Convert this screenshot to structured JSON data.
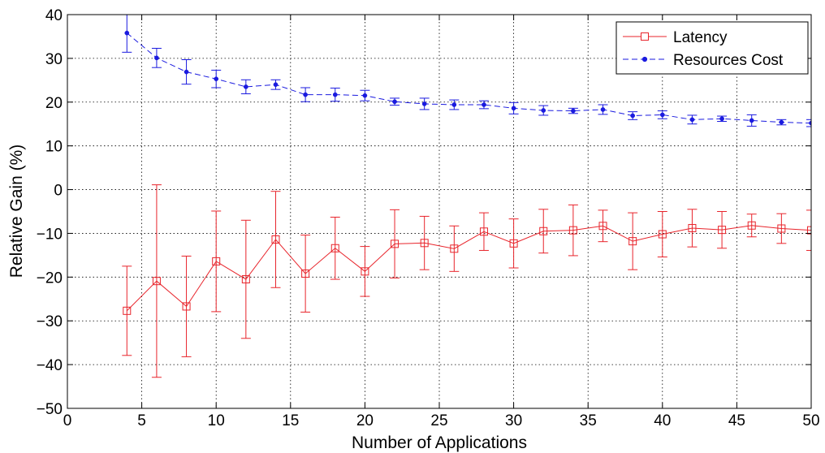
{
  "chart_data": {
    "type": "line",
    "xlabel": "Number of Applications",
    "ylabel": "Relative Gain (%)",
    "xlim": [
      0,
      50
    ],
    "ylim": [
      -50,
      40
    ],
    "xticks": [
      0,
      5,
      10,
      15,
      20,
      25,
      30,
      35,
      40,
      45,
      50
    ],
    "yticks": [
      40,
      30,
      20,
      10,
      0,
      -10,
      -20,
      -30,
      -40,
      -50
    ],
    "xtick_labels": [
      "0",
      "5",
      "10",
      "15",
      "20",
      "25",
      "30",
      "35",
      "40",
      "45",
      "50"
    ],
    "ytick_labels": [
      "40",
      "30",
      "20",
      "10",
      "0",
      "−10",
      "−20",
      "−30",
      "−40",
      "−50"
    ],
    "grid": true,
    "legend_position": "top-right",
    "x": [
      4,
      6,
      8,
      10,
      12,
      14,
      16,
      18,
      20,
      22,
      24,
      26,
      28,
      30,
      32,
      34,
      36,
      38,
      40,
      42,
      44,
      46,
      48,
      50
    ],
    "series": [
      {
        "name": "Latency",
        "color": "#e8242b",
        "line_style": "solid",
        "marker": "square",
        "values": [
          -27.7,
          -20.9,
          -26.7,
          -16.4,
          -20.5,
          -11.4,
          -19.2,
          -13.4,
          -18.7,
          -12.4,
          -12.2,
          -13.5,
          -9.6,
          -12.3,
          -9.5,
          -9.3,
          -8.3,
          -11.8,
          -10.2,
          -8.8,
          -9.2,
          -8.2,
          -8.9,
          -9.3
        ],
        "error": [
          10.2,
          22.0,
          11.5,
          11.5,
          13.5,
          11.0,
          8.8,
          7.1,
          5.7,
          7.8,
          6.1,
          5.2,
          4.3,
          5.6,
          5.0,
          5.8,
          3.6,
          6.5,
          5.2,
          4.3,
          4.2,
          2.6,
          3.4,
          4.6
        ]
      },
      {
        "name": "Resources Cost",
        "color": "#1a1adf",
        "line_style": "dashed",
        "marker": "point",
        "values": [
          35.8,
          30.1,
          26.9,
          25.3,
          23.5,
          24.0,
          21.7,
          21.7,
          21.5,
          20.1,
          19.6,
          19.4,
          19.4,
          18.6,
          18.1,
          18.0,
          18.3,
          16.9,
          17.1,
          16.0,
          16.2,
          15.8,
          15.4,
          15.2
        ],
        "error": [
          4.4,
          2.2,
          2.8,
          2.0,
          1.6,
          1.1,
          1.6,
          1.5,
          1.2,
          0.8,
          1.3,
          1.1,
          0.9,
          1.3,
          1.1,
          0.6,
          1.1,
          0.9,
          0.9,
          1.0,
          0.6,
          1.3,
          0.6,
          0.8
        ]
      }
    ]
  }
}
